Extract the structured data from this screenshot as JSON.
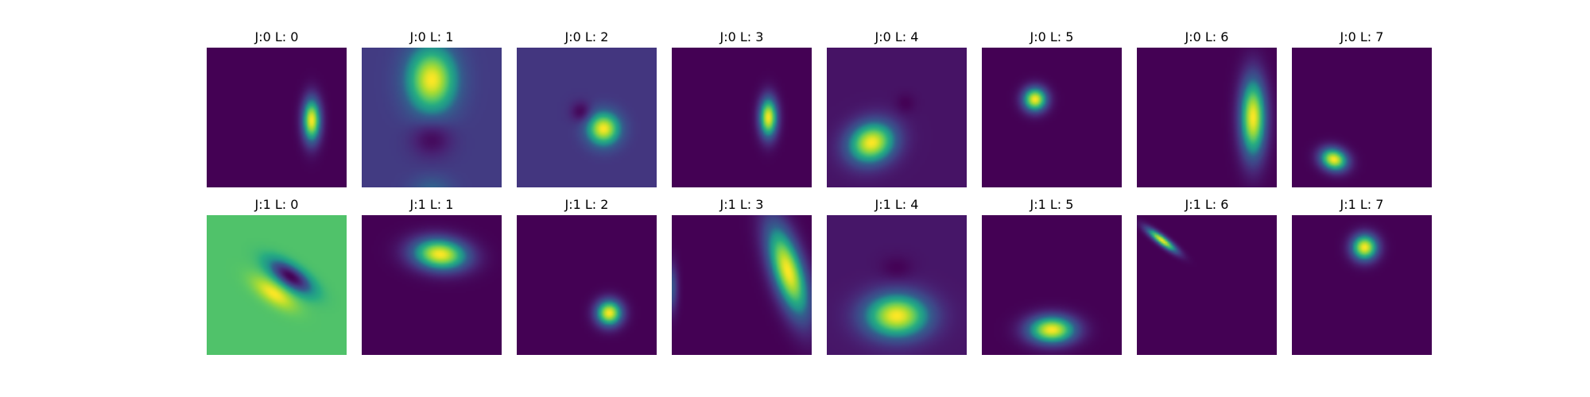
{
  "chart_data": {
    "type": "heatmap",
    "colormap": "viridis",
    "grid": false,
    "layout": "2 rows x 8 columns of image panels",
    "panels": [
      {
        "title": "J:0 L: 0",
        "background": 0.0,
        "blobs": [
          {
            "cx": 0.75,
            "cy": 0.52,
            "sx": 0.045,
            "sy": 0.11,
            "angle": 0,
            "amp": 1.0
          }
        ]
      },
      {
        "title": "J:0 L: 1",
        "background": 0.22,
        "blobs": [
          {
            "cx": 0.5,
            "cy": 0.23,
            "sx": 0.12,
            "sy": 0.16,
            "angle": 0,
            "amp": 0.78
          },
          {
            "cx": 0.5,
            "cy": 0.65,
            "sx": 0.1,
            "sy": 0.09,
            "angle": 0,
            "amp": -0.2
          },
          {
            "cx": 0.5,
            "cy": 1.02,
            "sx": 0.1,
            "sy": 0.07,
            "angle": 0,
            "amp": 0.18
          }
        ]
      },
      {
        "title": "J:0 L: 2",
        "background": 0.2,
        "blobs": [
          {
            "cx": 0.62,
            "cy": 0.58,
            "sx": 0.08,
            "sy": 0.08,
            "angle": 0,
            "amp": 0.8
          },
          {
            "cx": 0.46,
            "cy": 0.46,
            "sx": 0.05,
            "sy": 0.05,
            "angle": 0,
            "amp": -0.2
          }
        ]
      },
      {
        "title": "J:0 L: 3",
        "background": 0.0,
        "blobs": [
          {
            "cx": 0.69,
            "cy": 0.5,
            "sx": 0.045,
            "sy": 0.1,
            "angle": 0,
            "amp": 1.0
          }
        ]
      },
      {
        "title": "J:0 L: 4",
        "background": 0.07,
        "blobs": [
          {
            "cx": 0.32,
            "cy": 0.68,
            "sx": 0.12,
            "sy": 0.1,
            "angle": -0.4,
            "amp": 0.93
          },
          {
            "cx": 0.56,
            "cy": 0.4,
            "sx": 0.05,
            "sy": 0.05,
            "angle": 0,
            "amp": -0.07
          }
        ]
      },
      {
        "title": "J:0 L: 5",
        "background": 0.0,
        "blobs": [
          {
            "cx": 0.38,
            "cy": 0.37,
            "sx": 0.06,
            "sy": 0.06,
            "angle": 0,
            "amp": 1.0
          }
        ]
      },
      {
        "title": "J:0 L: 6",
        "background": 0.0,
        "blobs": [
          {
            "cx": 0.83,
            "cy": 0.5,
            "sx": 0.065,
            "sy": 0.2,
            "angle": 0,
            "amp": 1.0
          }
        ]
      },
      {
        "title": "J:0 L: 7",
        "background": 0.0,
        "blobs": [
          {
            "cx": 0.3,
            "cy": 0.8,
            "sx": 0.07,
            "sy": 0.055,
            "angle": 0.35,
            "amp": 1.0
          }
        ]
      },
      {
        "title": "J:1 L: 0",
        "background": 0.72,
        "blobs": [
          {
            "cx": 0.6,
            "cy": 0.44,
            "sx": 0.12,
            "sy": 0.05,
            "angle": 0.6,
            "amp": -0.72
          },
          {
            "cx": 0.48,
            "cy": 0.56,
            "sx": 0.12,
            "sy": 0.05,
            "angle": 0.6,
            "amp": 0.28
          }
        ]
      },
      {
        "title": "J:1 L: 1",
        "background": 0.0,
        "blobs": [
          {
            "cx": 0.56,
            "cy": 0.28,
            "sx": 0.14,
            "sy": 0.08,
            "angle": 0.1,
            "amp": 1.0
          }
        ]
      },
      {
        "title": "J:1 L: 2",
        "background": 0.0,
        "blobs": [
          {
            "cx": 0.66,
            "cy": 0.7,
            "sx": 0.065,
            "sy": 0.065,
            "angle": 0,
            "amp": 1.0
          }
        ]
      },
      {
        "title": "J:1 L: 3",
        "background": 0.0,
        "blobs": [
          {
            "cx": 0.83,
            "cy": 0.4,
            "sx": 0.08,
            "sy": 0.24,
            "angle": -0.3,
            "amp": 1.0
          },
          {
            "cx": 0.0,
            "cy": 0.52,
            "sx": 0.03,
            "sy": 0.12,
            "angle": 0,
            "amp": 0.35
          }
        ]
      },
      {
        "title": "J:1 L: 4",
        "background": 0.08,
        "blobs": [
          {
            "cx": 0.5,
            "cy": 0.72,
            "sx": 0.16,
            "sy": 0.11,
            "angle": 0,
            "amp": 0.92
          },
          {
            "cx": 0.5,
            "cy": 0.38,
            "sx": 0.08,
            "sy": 0.06,
            "angle": 0,
            "amp": -0.08
          }
        ]
      },
      {
        "title": "J:1 L: 5",
        "background": 0.0,
        "blobs": [
          {
            "cx": 0.5,
            "cy": 0.82,
            "sx": 0.12,
            "sy": 0.07,
            "angle": 0,
            "amp": 1.0
          }
        ]
      },
      {
        "title": "J:1 L: 6",
        "background": 0.0,
        "blobs": [
          {
            "cx": 0.18,
            "cy": 0.18,
            "sx": 0.09,
            "sy": 0.022,
            "angle": 0.65,
            "amp": 1.0
          }
        ]
      },
      {
        "title": "J:1 L: 7",
        "background": 0.0,
        "blobs": [
          {
            "cx": 0.52,
            "cy": 0.23,
            "sx": 0.065,
            "sy": 0.065,
            "angle": 0,
            "amp": 1.0
          }
        ]
      }
    ]
  }
}
